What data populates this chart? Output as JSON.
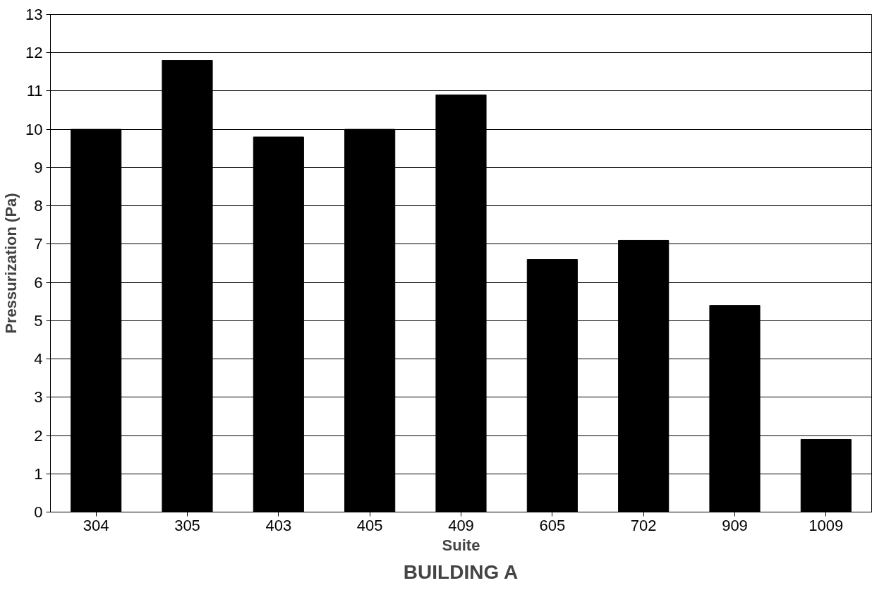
{
  "chart_data": {
    "type": "bar",
    "title": "BUILDING A",
    "xlabel": "Suite",
    "ylabel": "Pressurization (Pa)",
    "categories": [
      "304",
      "305",
      "403",
      "405",
      "409",
      "605",
      "702",
      "909",
      "1009"
    ],
    "values": [
      10,
      11.8,
      9.8,
      10,
      10.9,
      6.6,
      7.1,
      5.4,
      1.9
    ],
    "color": "#000000",
    "ylim": [
      0,
      13
    ],
    "yticks": [
      0,
      1,
      2,
      3,
      4,
      5,
      6,
      7,
      8,
      9,
      10,
      11,
      12,
      13
    ],
    "grid": "y"
  }
}
